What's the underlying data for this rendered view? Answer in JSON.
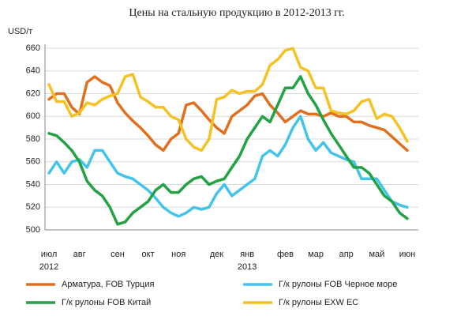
{
  "chart_data": {
    "type": "line",
    "title": "Цены на стальную продукцию в 2012-2013 гг.",
    "y_label": "USD/т",
    "categories": [
      "июл",
      null,
      null,
      null,
      "авг",
      null,
      null,
      null,
      null,
      "сен",
      null,
      null,
      null,
      "окт",
      null,
      null,
      null,
      "ноя",
      null,
      null,
      null,
      null,
      "дек",
      null,
      null,
      null,
      "янв",
      null,
      null,
      null,
      null,
      "фев",
      null,
      null,
      null,
      "мар",
      null,
      null,
      null,
      "апр",
      null,
      null,
      null,
      "май",
      null,
      null,
      null,
      "июн"
    ],
    "year_labels": [
      {
        "category": "июл",
        "label": "2012"
      },
      {
        "category": "янв",
        "label": "2013"
      }
    ],
    "ylim": [
      500,
      660
    ],
    "yticks": [
      500,
      520,
      540,
      560,
      580,
      600,
      620,
      640,
      660
    ],
    "grid": true,
    "series": [
      {
        "name": "Арматура, FOB Турция",
        "color": "#e0701e",
        "values": [
          615,
          620,
          620,
          608,
          602,
          630,
          635,
          630,
          627,
          612,
          603,
          596,
          590,
          583,
          575,
          570,
          580,
          585,
          610,
          612,
          605,
          597,
          590,
          585,
          600,
          605,
          610,
          618,
          620,
          610,
          603,
          595,
          600,
          605,
          602,
          602,
          600,
          603,
          600,
          600,
          595,
          595,
          592,
          590,
          588,
          582,
          576,
          570
        ]
      },
      {
        "name": "Г/к рулоны FOB Черное море",
        "color": "#44c4ea",
        "values": [
          550,
          560,
          550,
          560,
          562,
          555,
          570,
          570,
          560,
          550,
          547,
          545,
          540,
          535,
          528,
          520,
          515,
          512,
          515,
          520,
          518,
          520,
          532,
          540,
          530,
          535,
          540,
          545,
          565,
          570,
          565,
          575,
          590,
          600,
          580,
          570,
          577,
          568,
          565,
          562,
          560,
          545,
          545,
          545,
          535,
          525,
          522,
          520
        ]
      },
      {
        "name": "Г/к рулоны FOB Китай",
        "color": "#22a244",
        "values": [
          585,
          583,
          577,
          570,
          560,
          543,
          535,
          530,
          520,
          505,
          507,
          515,
          520,
          525,
          535,
          540,
          533,
          533,
          540,
          545,
          547,
          540,
          543,
          545,
          555,
          565,
          580,
          590,
          600,
          595,
          610,
          625,
          625,
          635,
          620,
          610,
          597,
          585,
          575,
          565,
          555,
          555,
          550,
          540,
          530,
          525,
          515,
          510
        ]
      },
      {
        "name": "Г/к рулоны EXW ЕС",
        "color": "#f5c224",
        "values": [
          628,
          613,
          613,
          600,
          603,
          612,
          610,
          615,
          618,
          620,
          635,
          637,
          617,
          613,
          608,
          608,
          600,
          597,
          580,
          573,
          570,
          580,
          615,
          617,
          623,
          620,
          622,
          622,
          628,
          645,
          650,
          658,
          660,
          643,
          640,
          625,
          625,
          605,
          603,
          602,
          605,
          613,
          615,
          598,
          602,
          600,
          590,
          578
        ]
      }
    ]
  }
}
